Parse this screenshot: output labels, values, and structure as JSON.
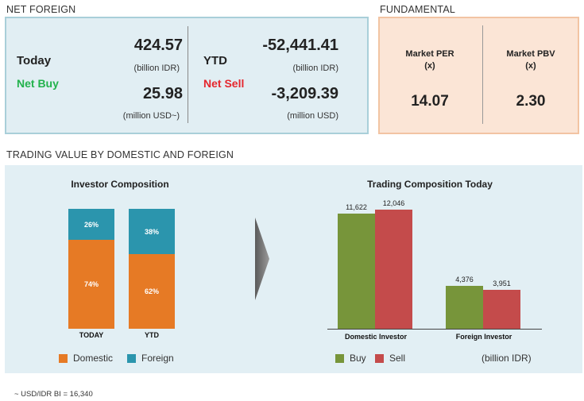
{
  "net_foreign": {
    "title": "NET FOREIGN",
    "today": {
      "label": "Today",
      "status": "Net Buy",
      "status_color": "#22b24c",
      "idr_value": "424.57",
      "idr_unit": "(billion IDR)",
      "usd_value": "25.98",
      "usd_unit": "(million USD~)"
    },
    "ytd": {
      "label": "YTD",
      "status": "Net Sell",
      "status_color": "#e5262d",
      "idr_value": "-52,441.41",
      "idr_unit": "(billion IDR)",
      "usd_value": "-3,209.39",
      "usd_unit": "(million USD)"
    }
  },
  "fundamental": {
    "title": "FUNDAMENTAL",
    "per": {
      "label": "Market PER",
      "unit": "(x)",
      "value": "14.07"
    },
    "pbv": {
      "label": "Market PBV",
      "unit": "(x)",
      "value": "2.30"
    }
  },
  "trading": {
    "title": "TRADING VALUE BY DOMESTIC AND FOREIGN",
    "investor_composition": {
      "title": "Investor Composition",
      "bars": [
        {
          "category": "TODAY",
          "foreign_label": "26%",
          "domestic_label": "74%",
          "foreign": 26,
          "domestic": 74
        },
        {
          "category": "YTD",
          "foreign_label": "38%",
          "domestic_label": "62%",
          "foreign": 38,
          "domestic": 62
        }
      ],
      "legend": {
        "domestic": "Domestic",
        "foreign": "Foreign"
      },
      "colors": {
        "domestic": "#e67a25",
        "foreign": "#2b95ad"
      }
    },
    "trading_composition": {
      "title": "Trading Composition Today",
      "groups": [
        {
          "category": "Domestic Investor",
          "buy": 11622,
          "sell": 12046,
          "buy_label": "11,622",
          "sell_label": "12,046"
        },
        {
          "category": "Foreign Investor",
          "buy": 4376,
          "sell": 3951,
          "buy_label": "4,376",
          "sell_label": "3,951"
        }
      ],
      "legend": {
        "buy": "Buy",
        "sell": "Sell"
      },
      "unit": "(billion IDR)",
      "colors": {
        "buy": "#77953a",
        "sell": "#c44b4b"
      }
    }
  },
  "footnote": "~ USD/IDR BI = 16,340",
  "chart_data": [
    {
      "type": "bar",
      "title": "Investor Composition",
      "categories": [
        "TODAY",
        "YTD"
      ],
      "series": [
        {
          "name": "Domestic",
          "values": [
            74,
            62
          ]
        },
        {
          "name": "Foreign",
          "values": [
            26,
            38
          ]
        }
      ],
      "stacked": true,
      "ylim": [
        0,
        100
      ]
    },
    {
      "type": "bar",
      "title": "Trading Composition Today",
      "categories": [
        "Domestic Investor",
        "Foreign Investor"
      ],
      "series": [
        {
          "name": "Buy",
          "values": [
            11622,
            4376
          ]
        },
        {
          "name": "Sell",
          "values": [
            12046,
            3951
          ]
        }
      ],
      "ylabel": "(billion IDR)",
      "ylim": [
        0,
        12046
      ]
    }
  ]
}
